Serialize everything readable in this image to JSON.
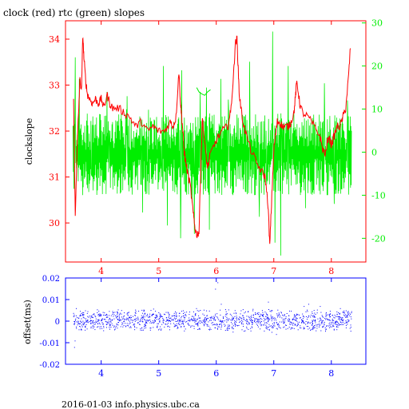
{
  "title": "clock (red) rtc (green) slopes",
  "footer": "2016-01-03 info.physics.ubc.ca",
  "colors": {
    "clock": "#ff0000",
    "rtc": "#00ee00",
    "offset": "#0000ff",
    "upper_frame": "#ff0000",
    "lower_frame": "#0000ff",
    "background": "#ffffff"
  },
  "chart_data": [
    {
      "type": "line",
      "title": "clock (red) rtc (green) slopes",
      "xlabel": "",
      "ylabel": "clockslope",
      "xlim": [
        3.38,
        8.6
      ],
      "ylim": [
        29.15,
        34.4
      ],
      "y2lim": [
        -25.5,
        30.5
      ],
      "xticks": [
        4,
        5,
        6,
        7,
        8
      ],
      "yticks": [
        30,
        31,
        32,
        33,
        34
      ],
      "y2ticks": [
        -20,
        -10,
        0,
        10,
        20,
        30
      ],
      "series": [
        {
          "name": "clock",
          "axis": "left",
          "color": "#ff0000",
          "x": [
            3.52,
            3.55,
            3.58,
            3.6,
            3.63,
            3.66,
            3.68,
            3.7,
            3.73,
            3.76,
            3.8,
            3.85,
            3.9,
            3.95,
            4.0,
            4.05,
            4.1,
            4.15,
            4.2,
            4.3,
            4.4,
            4.5,
            4.6,
            4.7,
            4.8,
            4.9,
            5.0,
            5.1,
            5.2,
            5.25,
            5.3,
            5.35,
            5.38,
            5.4,
            5.42,
            5.44,
            5.46,
            5.5,
            5.55,
            5.6,
            5.63,
            5.66,
            5.7,
            5.73,
            5.76,
            5.8,
            5.85,
            5.9,
            6.0,
            6.1,
            6.2,
            6.25,
            6.3,
            6.33,
            6.36,
            6.38,
            6.4,
            6.45,
            6.5,
            6.6,
            6.7,
            6.8,
            6.85,
            6.9,
            6.93,
            6.96,
            7.0,
            7.03,
            7.06,
            7.1,
            7.15,
            7.2,
            7.25,
            7.3,
            7.35,
            7.38,
            7.4,
            7.45,
            7.5,
            7.6,
            7.7,
            7.8,
            7.85,
            7.9,
            7.95,
            8.0,
            8.05,
            8.1,
            8.15,
            8.2,
            8.25,
            8.3,
            8.33
          ],
          "y": [
            32.7,
            30.1,
            31.6,
            32.2,
            33.1,
            32.9,
            34.1,
            33.6,
            33.1,
            32.8,
            32.7,
            32.6,
            32.7,
            32.6,
            32.7,
            32.5,
            32.8,
            32.6,
            32.5,
            32.5,
            32.4,
            32.3,
            32.1,
            32.2,
            32.0,
            32.1,
            32.0,
            32.0,
            32.2,
            32.1,
            32.3,
            33.3,
            32.6,
            32.3,
            32.0,
            31.6,
            31.4,
            31.1,
            30.8,
            30.2,
            29.9,
            29.75,
            29.8,
            31.2,
            32.3,
            31.7,
            31.2,
            31.5,
            31.8,
            32.0,
            32.1,
            32.4,
            33.2,
            33.9,
            34.0,
            33.4,
            32.8,
            32.3,
            32.0,
            31.6,
            31.3,
            31.1,
            31.0,
            30.4,
            29.5,
            30.4,
            31.6,
            31.9,
            32.2,
            32.2,
            32.1,
            32.1,
            32.1,
            32.2,
            32.4,
            32.8,
            33.1,
            32.6,
            32.4,
            32.3,
            32.1,
            31.9,
            31.6,
            31.5,
            31.9,
            31.7,
            31.9,
            32.1,
            32.1,
            32.3,
            32.5,
            33.2,
            33.8
          ]
        },
        {
          "name": "rtc",
          "axis": "right",
          "color": "#00ee00",
          "x_range": [
            3.51,
            8.35
          ],
          "band": [
            -10,
            9
          ],
          "spikes": [
            [
              3.55,
              22
            ],
            [
              3.62,
              17
            ],
            [
              4.1,
              14
            ],
            [
              4.45,
              13
            ],
            [
              5.08,
              20
            ],
            [
              5.4,
              19
            ],
            [
              5.72,
              14
            ],
            [
              5.83,
              15
            ],
            [
              6.08,
              17
            ],
            [
              6.58,
              21
            ],
            [
              6.98,
              28
            ],
            [
              7.25,
              20
            ],
            [
              7.88,
              16
            ],
            [
              8.28,
              12
            ],
            [
              4.72,
              -14
            ],
            [
              5.15,
              -17
            ],
            [
              5.38,
              -20
            ],
            [
              5.62,
              -19
            ],
            [
              5.88,
              -18
            ],
            [
              6.75,
              -15
            ],
            [
              7.02,
              -21
            ],
            [
              7.12,
              -24
            ],
            [
              7.55,
              -13
            ],
            [
              8.05,
              -12
            ]
          ],
          "overlay": {
            "x": [
              5.66,
              5.7,
              5.75,
              5.8,
              5.85,
              5.9
            ],
            "y": [
              15,
              14,
              13.5,
              13.2,
              14,
              14.5
            ]
          }
        }
      ]
    },
    {
      "type": "scatter",
      "title": "",
      "xlabel": "",
      "ylabel": "offset(ms)",
      "xlim": [
        3.38,
        8.6
      ],
      "ylim": [
        -0.02,
        0.02
      ],
      "xticks": [
        4,
        5,
        6,
        7,
        8
      ],
      "yticks": [
        -0.02,
        -0.01,
        0,
        0.01,
        0.02
      ],
      "series": [
        {
          "name": "offset",
          "color": "#0000ff",
          "x_range": [
            3.51,
            8.35
          ],
          "band": [
            -0.0025,
            0.003
          ],
          "outliers": [
            [
              3.53,
              -0.012
            ],
            [
              3.54,
              -0.009
            ],
            [
              3.56,
              0.006
            ],
            [
              3.72,
              0.005
            ],
            [
              4.05,
              0.004
            ],
            [
              5.42,
              0.005
            ],
            [
              5.65,
              0.006
            ],
            [
              5.98,
              0.015
            ],
            [
              6.02,
              0.018
            ],
            [
              6.08,
              0.008
            ],
            [
              6.9,
              0.009
            ],
            [
              6.96,
              -0.005
            ],
            [
              7.04,
              -0.006
            ],
            [
              7.52,
              0.007
            ],
            [
              7.6,
              0.008
            ],
            [
              7.8,
              0.007
            ],
            [
              8.15,
              0.006
            ],
            [
              8.25,
              0.005
            ]
          ]
        }
      ]
    }
  ]
}
